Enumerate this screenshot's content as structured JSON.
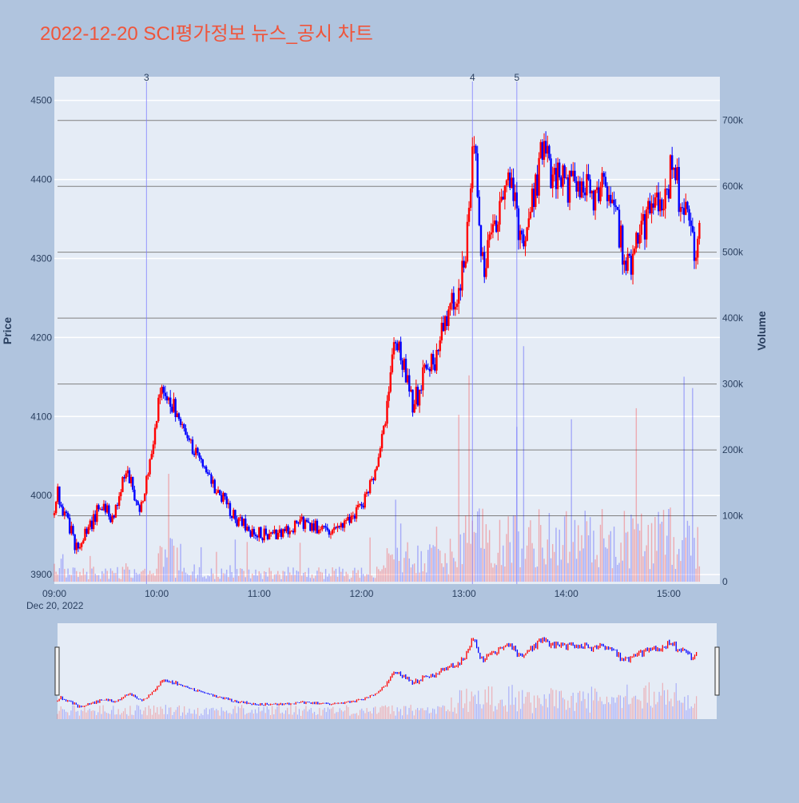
{
  "title": "2022-12-20 SCI평가정보 뉴스_공시 차트",
  "colors": {
    "page_bg": "#b0c4de",
    "plot_bg": "#e5ecf6",
    "up": "#ff0000",
    "down": "#0000ff",
    "title": "#ef553b",
    "grid": "#ffffff",
    "volume_grid": "#808080",
    "marker_line": "#8080ff",
    "axis_text": "#2a3f5f"
  },
  "chart_data": {
    "type": "candlestick",
    "y_label": "Price",
    "y2_label": "Volume",
    "date_label": "Dec 20, 2022",
    "price_ticks": [
      "3900",
      "4000",
      "4100",
      "4200",
      "4300",
      "4400",
      "4500"
    ],
    "volume_ticks": [
      "0",
      "100k",
      "200k",
      "300k",
      "400k",
      "500k",
      "600k",
      "700k"
    ],
    "time_ticks": [
      "09:00",
      "10:00",
      "11:00",
      "12:00",
      "13:00",
      "14:00",
      "15:00"
    ],
    "ylim": [
      3888,
      4530
    ],
    "y2lim": [
      0,
      770000
    ],
    "session": [
      "09:00",
      "15:30"
    ],
    "markers": [
      {
        "label": "3",
        "time": "09:54"
      },
      {
        "label": "4",
        "time": "13:05"
      },
      {
        "label": "5",
        "time": "13:31"
      }
    ],
    "price_path": [
      [
        "09:00",
        3975
      ],
      [
        "09:02",
        4005
      ],
      [
        "09:04",
        3985
      ],
      [
        "09:07",
        3970
      ],
      [
        "09:10",
        3955
      ],
      [
        "09:12",
        3935
      ],
      [
        "09:15",
        3940
      ],
      [
        "09:18",
        3950
      ],
      [
        "09:21",
        3960
      ],
      [
        "09:24",
        3975
      ],
      [
        "09:27",
        3990
      ],
      [
        "09:30",
        3985
      ],
      [
        "09:33",
        3970
      ],
      [
        "09:36",
        3985
      ],
      [
        "09:39",
        4010
      ],
      [
        "09:42",
        4030
      ],
      [
        "09:45",
        4015
      ],
      [
        "09:48",
        3990
      ],
      [
        "09:51",
        3985
      ],
      [
        "09:54",
        4020
      ],
      [
        "09:56",
        4050
      ],
      [
        "09:58",
        4065
      ],
      [
        "10:00",
        4100
      ],
      [
        "10:02",
        4125
      ],
      [
        "10:05",
        4130
      ],
      [
        "10:08",
        4120
      ],
      [
        "10:11",
        4110
      ],
      [
        "10:14",
        4095
      ],
      [
        "10:17",
        4080
      ],
      [
        "10:20",
        4065
      ],
      [
        "10:23",
        4055
      ],
      [
        "10:26",
        4040
      ],
      [
        "10:30",
        4025
      ],
      [
        "10:34",
        4010
      ],
      [
        "10:38",
        4000
      ],
      [
        "10:42",
        3985
      ],
      [
        "10:46",
        3970
      ],
      [
        "10:50",
        3965
      ],
      [
        "10:55",
        3955
      ],
      [
        "11:00",
        3953
      ],
      [
        "11:05",
        3950
      ],
      [
        "11:10",
        3952
      ],
      [
        "11:15",
        3955
      ],
      [
        "11:20",
        3958
      ],
      [
        "11:25",
        3965
      ],
      [
        "11:30",
        3962
      ],
      [
        "11:35",
        3958
      ],
      [
        "11:40",
        3955
      ],
      [
        "11:45",
        3962
      ],
      [
        "11:50",
        3968
      ],
      [
        "11:55",
        3975
      ],
      [
        "11:58",
        3985
      ],
      [
        "12:00",
        3990
      ],
      [
        "12:03",
        4000
      ],
      [
        "12:06",
        4020
      ],
      [
        "12:09",
        4040
      ],
      [
        "12:12",
        4070
      ],
      [
        "12:15",
        4120
      ],
      [
        "12:18",
        4175
      ],
      [
        "12:21",
        4195
      ],
      [
        "12:24",
        4165
      ],
      [
        "12:27",
        4145
      ],
      [
        "12:30",
        4110
      ],
      [
        "12:33",
        4130
      ],
      [
        "12:36",
        4155
      ],
      [
        "12:39",
        4175
      ],
      [
        "12:42",
        4165
      ],
      [
        "12:45",
        4185
      ],
      [
        "12:48",
        4215
      ],
      [
        "12:51",
        4235
      ],
      [
        "12:54",
        4245
      ],
      [
        "12:57",
        4265
      ],
      [
        "13:00",
        4295
      ],
      [
        "13:03",
        4355
      ],
      [
        "13:05",
        4430
      ],
      [
        "13:07",
        4420
      ],
      [
        "13:09",
        4340
      ],
      [
        "13:11",
        4300
      ],
      [
        "13:13",
        4295
      ],
      [
        "13:16",
        4320
      ],
      [
        "13:19",
        4355
      ],
      [
        "13:22",
        4375
      ],
      [
        "13:25",
        4395
      ],
      [
        "13:28",
        4385
      ],
      [
        "13:31",
        4360
      ],
      [
        "13:33",
        4315
      ],
      [
        "13:35",
        4325
      ],
      [
        "13:38",
        4360
      ],
      [
        "13:40",
        4370
      ],
      [
        "13:42",
        4385
      ],
      [
        "13:45",
        4430
      ],
      [
        "13:47",
        4455
      ],
      [
        "13:50",
        4415
      ],
      [
        "13:53",
        4395
      ],
      [
        "13:56",
        4410
      ],
      [
        "14:00",
        4385
      ],
      [
        "14:03",
        4400
      ],
      [
        "14:06",
        4380
      ],
      [
        "14:09",
        4395
      ],
      [
        "14:12",
        4385
      ],
      [
        "14:15",
        4370
      ],
      [
        "14:18",
        4390
      ],
      [
        "14:21",
        4395
      ],
      [
        "14:24",
        4380
      ],
      [
        "14:27",
        4370
      ],
      [
        "14:30",
        4345
      ],
      [
        "14:33",
        4310
      ],
      [
        "14:36",
        4285
      ],
      [
        "14:39",
        4305
      ],
      [
        "14:42",
        4325
      ],
      [
        "14:45",
        4340
      ],
      [
        "14:48",
        4355
      ],
      [
        "14:51",
        4370
      ],
      [
        "14:54",
        4360
      ],
      [
        "14:57",
        4355
      ],
      [
        "15:00",
        4395
      ],
      [
        "15:02",
        4430
      ],
      [
        "15:04",
        4415
      ],
      [
        "15:06",
        4380
      ],
      [
        "15:08",
        4345
      ],
      [
        "15:10",
        4355
      ],
      [
        "15:12",
        4335
      ],
      [
        "15:14",
        4320
      ],
      [
        "15:16",
        4310
      ],
      [
        "15:18",
        4330
      ]
    ]
  }
}
